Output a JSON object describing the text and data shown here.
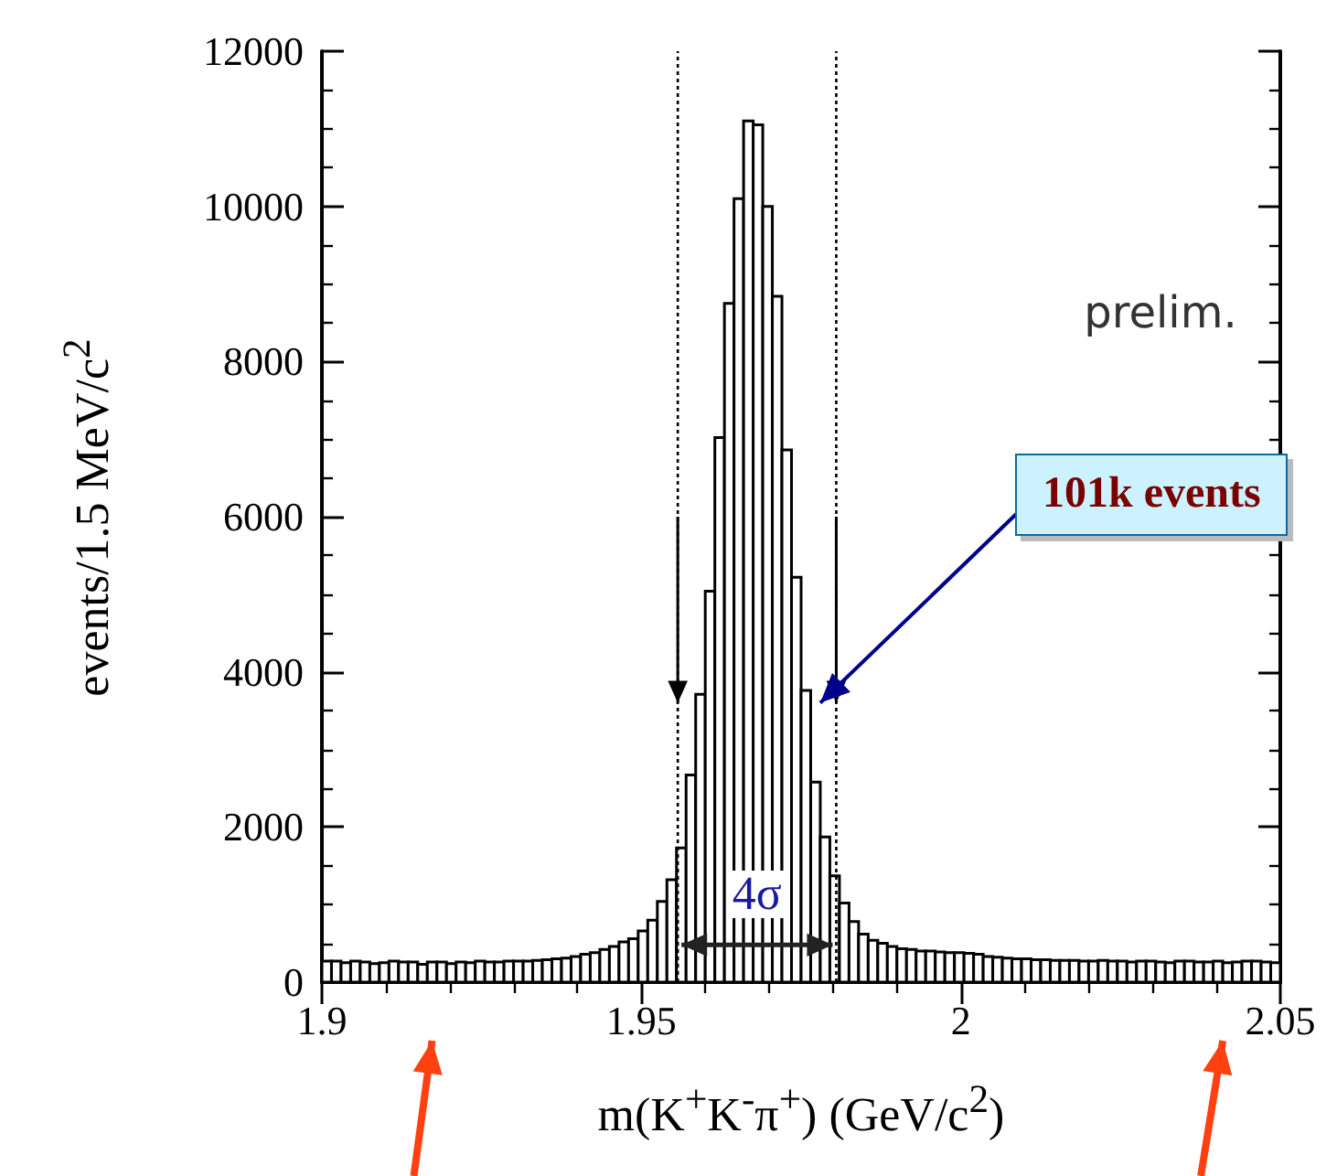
{
  "chart_data": {
    "type": "histogram",
    "xlabel": "m(K$^{+}$K$^{-}$π$^{+}$) (GeV/c$^{2}$)",
    "ylabel": "events/1.5 MeV/c$^{2}$",
    "annotations": [
      "prelim.",
      "101k events",
      "4σ"
    ],
    "bins": [
      1.9,
      1.9015,
      1.903,
      1.9045,
      1.906,
      1.9075,
      1.909,
      1.9105,
      1.912,
      1.9135,
      1.915,
      1.9165,
      1.918,
      1.9195,
      1.921,
      1.9225,
      1.924,
      1.9255,
      1.927,
      1.9285,
      1.93,
      1.9315,
      1.933,
      1.9345,
      1.936,
      1.9375,
      1.939,
      1.9405,
      1.942,
      1.9435,
      1.945,
      1.9465,
      1.948,
      1.9495,
      1.951,
      1.9525,
      1.954,
      1.9555,
      1.957,
      1.9585,
      1.96,
      1.9615,
      1.963,
      1.9645,
      1.966,
      1.9675,
      1.969,
      1.9705,
      1.972,
      1.9735,
      1.975,
      1.9765,
      1.978,
      1.9795,
      1.981,
      1.9825,
      1.984,
      1.9855,
      1.987,
      1.9885,
      1.99,
      1.9915,
      1.993,
      1.9945,
      1.996,
      1.9975,
      1.999,
      2.0005,
      2.002,
      2.0035,
      2.005,
      2.0065,
      2.008,
      2.0095,
      2.011,
      2.0125,
      2.014,
      2.0155,
      2.017,
      2.0185,
      2.02,
      2.0215,
      2.023,
      2.0245,
      2.026,
      2.0275,
      2.029,
      2.0305,
      2.032,
      2.0335,
      2.035,
      2.0365,
      2.038,
      2.0395,
      2.041,
      2.0425,
      2.044,
      2.0455,
      2.047,
      2.0485,
      2.05
    ],
    "values": [
      270,
      270,
      250,
      270,
      260,
      240,
      250,
      270,
      260,
      260,
      230,
      260,
      260,
      240,
      260,
      250,
      270,
      260,
      260,
      270,
      270,
      270,
      280,
      290,
      300,
      310,
      330,
      360,
      380,
      420,
      460,
      520,
      560,
      660,
      800,
      1040,
      1320,
      1730,
      2670,
      3710,
      5040,
      7020,
      8750,
      10100,
      11100,
      11050,
      10000,
      8840,
      6860,
      5220,
      3760,
      2580,
      1870,
      1370,
      1020,
      780,
      620,
      540,
      500,
      460,
      430,
      420,
      400,
      400,
      390,
      380,
      380,
      370,
      360,
      330,
      320,
      310,
      300,
      300,
      290,
      290,
      280,
      280,
      280,
      270,
      270,
      280,
      270,
      270,
      260,
      270,
      270,
      260,
      250,
      270,
      270,
      260,
      260,
      270,
      250,
      260,
      270,
      270,
      260,
      250
    ],
    "color": "#000000",
    "xlim": [
      1.9,
      2.05
    ],
    "xticks": [
      1.9,
      1.95,
      2,
      2.05
    ],
    "ylim": [
      0,
      12000
    ],
    "yticks": [
      0,
      2000,
      4000,
      6000,
      8000,
      10000,
      12000
    ],
    "ref_lines": [
      {
        "axis": "x",
        "value": 1.9557,
        "color": "#000000",
        "line_style": "dotted"
      },
      {
        "axis": "x",
        "value": 1.9805,
        "color": "#000000",
        "line_style": "dotted"
      }
    ],
    "grid": false
  }
}
